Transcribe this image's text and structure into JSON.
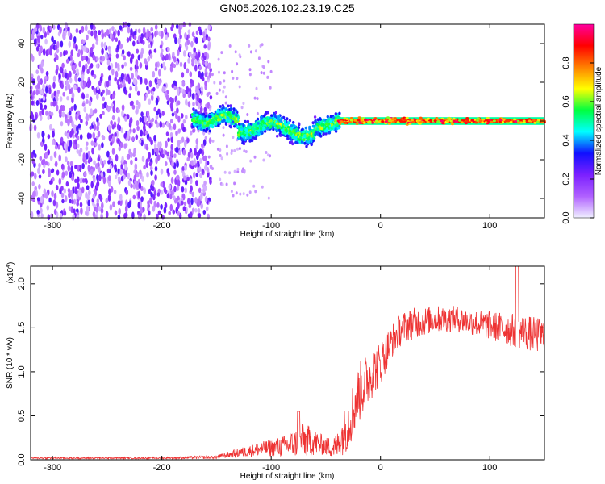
{
  "title": "GN05.2026.102.23.19.C25",
  "chart_data": [
    {
      "type": "heatmap",
      "xlabel": "Height of straight line (km)",
      "ylabel": "Frequency (Hz)",
      "xlim": [
        -320,
        150
      ],
      "ylim": [
        -50,
        50
      ],
      "xticks": [
        -300,
        -200,
        -100,
        0,
        100
      ],
      "yticks": [
        -40,
        -20,
        0,
        20,
        40
      ],
      "colorbar": {
        "label": "Normalized spectral amplitude",
        "range": [
          0,
          1
        ],
        "ticks": [
          "0.0",
          "0.2",
          "0.4",
          "0.6",
          "0.8"
        ],
        "tick_values": [
          0,
          0.2,
          0.4,
          0.6,
          0.8
        ],
        "colormap": [
          "#f0f0ff",
          "#b060ff",
          "#7b20ff",
          "#1010ff",
          "#00ffff",
          "#00ff40",
          "#ffff00",
          "#ff8000",
          "#ff0000",
          "#ff00a0"
        ]
      },
      "regions": [
        {
          "description_x_range": [
            -320,
            -155
          ],
          "freq_range": [
            -50,
            50
          ],
          "amplitude": "low (0.0-0.2), scattered broadband"
        },
        {
          "description_x_range": [
            -170,
            -40
          ],
          "freq_range": [
            -12,
            8
          ],
          "amplitude": "0.2-0.6, wandering band near 0 Hz"
        },
        {
          "description_x_range": [
            -40,
            150
          ],
          "freq_range": [
            -2,
            2
          ],
          "amplitude": "0.8-1.0, narrow line at 0 Hz"
        }
      ]
    },
    {
      "type": "line",
      "xlabel": "Height of straight line (km)",
      "ylabel": "SNR (10 * v/v)",
      "y_multiplier_label": "(x10",
      "y_multiplier_exp": "4",
      "y_multiplier_close": ")",
      "xlim": [
        -320,
        150
      ],
      "ylim": [
        0,
        2.2
      ],
      "xticks": [
        -300,
        -200,
        -100,
        0,
        100
      ],
      "yticks": [
        "0.0",
        "0.5",
        "1.0",
        "1.5",
        "2.0"
      ],
      "ytick_values": [
        0,
        0.5,
        1.0,
        1.5,
        2.0
      ],
      "color": "#ee3333",
      "envelope_x": [
        -320,
        -200,
        -150,
        -130,
        -110,
        -90,
        -80,
        -70,
        -60,
        -50,
        -40,
        -30,
        -20,
        -10,
        0,
        10,
        20,
        30,
        50,
        70,
        90,
        110,
        130,
        150
      ],
      "envelope_y": [
        0.02,
        0.02,
        0.03,
        0.08,
        0.12,
        0.15,
        0.18,
        0.22,
        0.2,
        0.15,
        0.15,
        0.4,
        0.75,
        0.95,
        1.1,
        1.35,
        1.5,
        1.55,
        1.6,
        1.6,
        1.55,
        1.5,
        1.45,
        1.4
      ],
      "envelope_spread": [
        0.01,
        0.01,
        0.02,
        0.05,
        0.08,
        0.12,
        0.15,
        0.2,
        0.15,
        0.1,
        0.15,
        0.3,
        0.35,
        0.3,
        0.25,
        0.2,
        0.18,
        0.18,
        0.15,
        0.15,
        0.15,
        0.18,
        0.2,
        0.2
      ]
    }
  ]
}
